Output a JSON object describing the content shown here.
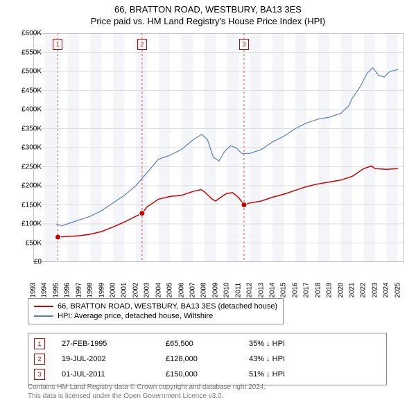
{
  "title": "66, BRATTON ROAD, WESTBURY, BA13 3ES",
  "subtitle": "Price paid vs. HM Land Registry's House Price Index (HPI)",
  "chart": {
    "type": "line",
    "background_color": "#ffffff",
    "alt_band_color": "#f3f5f8",
    "grid_color": "#dddddd",
    "axis_color": "#888888",
    "x_years": [
      1993,
      1994,
      1995,
      1996,
      1997,
      1998,
      1999,
      2000,
      2001,
      2002,
      2003,
      2004,
      2005,
      2006,
      2007,
      2008,
      2009,
      2010,
      2011,
      2012,
      2013,
      2014,
      2015,
      2016,
      2017,
      2018,
      2019,
      2020,
      2021,
      2022,
      2023,
      2024,
      2025
    ],
    "xlim": [
      1993,
      2025.5
    ],
    "ylim": [
      0,
      600000
    ],
    "ytick_step": 50000,
    "ytick_labels": [
      "£0",
      "£50K",
      "£100K",
      "£150K",
      "£200K",
      "£250K",
      "£300K",
      "£350K",
      "£400K",
      "£450K",
      "£500K",
      "£550K",
      "£600K"
    ],
    "label_fontsize": 10,
    "series": [
      {
        "name": "66, BRATTON ROAD, WESTBURY, BA13 3ES (detached house)",
        "color": "#cc0000",
        "line_width": 1.5,
        "data_yearly": [
          [
            1995.16,
            65500
          ],
          [
            1996,
            67000
          ],
          [
            1997,
            69000
          ],
          [
            1998,
            73000
          ],
          [
            1999,
            80000
          ],
          [
            2000,
            92000
          ],
          [
            2001,
            105000
          ],
          [
            2002,
            120000
          ],
          [
            2002.55,
            128000
          ],
          [
            2003,
            145000
          ],
          [
            2004,
            165000
          ],
          [
            2005,
            172000
          ],
          [
            2006,
            175000
          ],
          [
            2007,
            185000
          ],
          [
            2007.7,
            190000
          ],
          [
            2008,
            185000
          ],
          [
            2008.7,
            165000
          ],
          [
            2009,
            160000
          ],
          [
            2009.7,
            175000
          ],
          [
            2010,
            180000
          ],
          [
            2010.5,
            182000
          ],
          [
            2011,
            170000
          ],
          [
            2011.5,
            150000
          ],
          [
            2012,
            155000
          ],
          [
            2013,
            160000
          ],
          [
            2014,
            170000
          ],
          [
            2015,
            178000
          ],
          [
            2016,
            188000
          ],
          [
            2017,
            198000
          ],
          [
            2018,
            205000
          ],
          [
            2019,
            210000
          ],
          [
            2020,
            215000
          ],
          [
            2021,
            225000
          ],
          [
            2022,
            245000
          ],
          [
            2022.7,
            252000
          ],
          [
            2023,
            245000
          ],
          [
            2024,
            243000
          ],
          [
            2025,
            245000
          ]
        ]
      },
      {
        "name": "HPI: Average price, detached house, Wiltshire",
        "color": "#5b7fb5",
        "line_width": 1.2,
        "data_yearly": [
          [
            1995,
            100000
          ],
          [
            1995.5,
            95000
          ],
          [
            1996,
            100000
          ],
          [
            1997,
            110000
          ],
          [
            1998,
            120000
          ],
          [
            1999,
            135000
          ],
          [
            2000,
            155000
          ],
          [
            2001,
            175000
          ],
          [
            2002,
            200000
          ],
          [
            2003,
            235000
          ],
          [
            2004,
            270000
          ],
          [
            2005,
            280000
          ],
          [
            2006,
            295000
          ],
          [
            2007,
            320000
          ],
          [
            2007.8,
            335000
          ],
          [
            2008.3,
            320000
          ],
          [
            2008.8,
            275000
          ],
          [
            2009.3,
            265000
          ],
          [
            2009.8,
            290000
          ],
          [
            2010.3,
            305000
          ],
          [
            2010.8,
            300000
          ],
          [
            2011.3,
            285000
          ],
          [
            2012,
            285000
          ],
          [
            2013,
            295000
          ],
          [
            2014,
            315000
          ],
          [
            2015,
            330000
          ],
          [
            2016,
            350000
          ],
          [
            2017,
            365000
          ],
          [
            2018,
            375000
          ],
          [
            2019,
            380000
          ],
          [
            2020,
            390000
          ],
          [
            2020.7,
            410000
          ],
          [
            2021,
            430000
          ],
          [
            2021.7,
            460000
          ],
          [
            2022.3,
            495000
          ],
          [
            2022.8,
            510000
          ],
          [
            2023.3,
            490000
          ],
          [
            2023.8,
            485000
          ],
          [
            2024.3,
            500000
          ],
          [
            2025,
            505000
          ]
        ]
      }
    ],
    "sale_markers": [
      {
        "idx": "1",
        "year": 1995.16,
        "price": 65500,
        "date_label": "27-FEB-1995",
        "price_label": "£65,500",
        "pct_label": "35% ↓ HPI"
      },
      {
        "idx": "2",
        "year": 2002.55,
        "price": 128000,
        "date_label": "19-JUL-2002",
        "price_label": "£128,000",
        "pct_label": "43% ↓ HPI"
      },
      {
        "idx": "3",
        "year": 2011.5,
        "price": 150000,
        "date_label": "01-JUL-2011",
        "price_label": "£150,000",
        "pct_label": "51% ↓ HPI"
      }
    ],
    "marker_box_border": "#cc0000",
    "marker_box_text": "#cc0000",
    "marker_dashed_color": "#cc5555",
    "marker_dot_fill": "#cc0000",
    "marker_dot_radius": 4
  },
  "legend": {
    "items": [
      {
        "color": "#cc0000",
        "label": "66, BRATTON ROAD, WESTBURY, BA13 3ES (detached house)"
      },
      {
        "color": "#5b7fb5",
        "label": "HPI: Average price, detached house, Wiltshire"
      }
    ]
  },
  "footer": {
    "line1": "Contains HM Land Registry data © Crown copyright and database right 2024.",
    "line2": "This data is licensed under the Open Government Licence v3.0."
  }
}
